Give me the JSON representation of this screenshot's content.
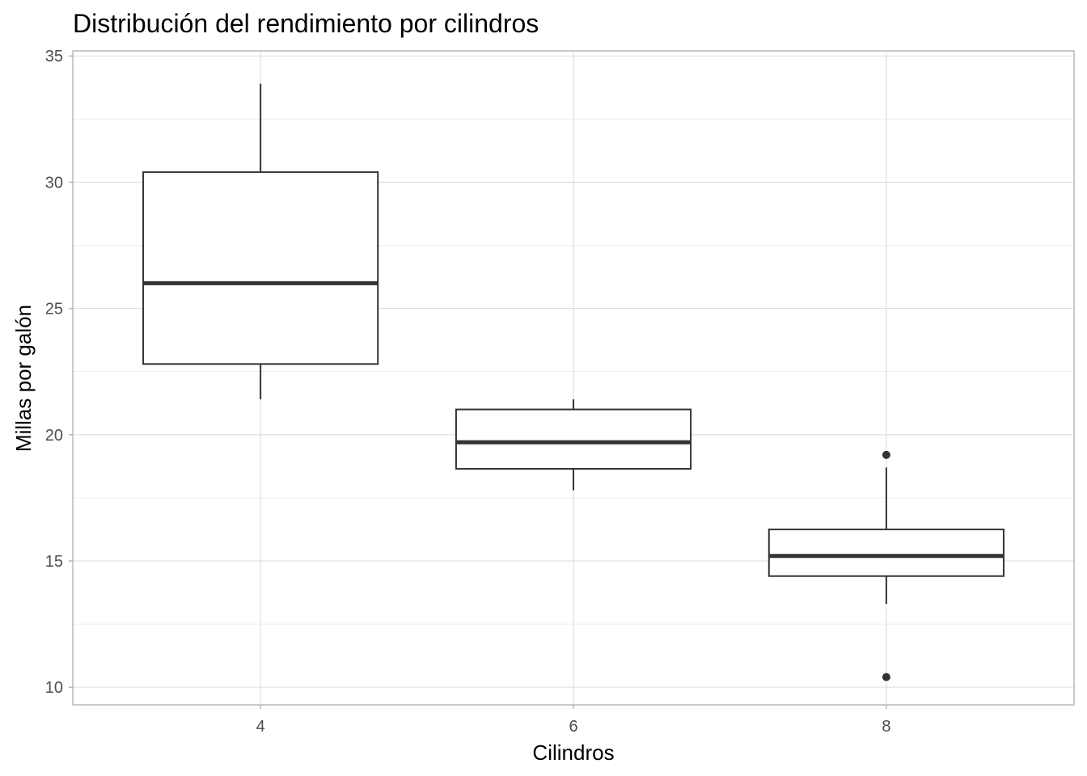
{
  "chart_data": {
    "type": "boxplot",
    "title": "Distribución del rendimiento por cilindros",
    "xlabel": "Cilindros",
    "ylabel": "Millas por galón",
    "categories": [
      "4",
      "6",
      "8"
    ],
    "ylim": [
      9.3,
      35.2
    ],
    "y_ticks": [
      10,
      15,
      20,
      25,
      30,
      35
    ],
    "grid": true,
    "series": [
      {
        "category": "4",
        "min": 21.4,
        "q1": 22.8,
        "median": 26.0,
        "q3": 30.4,
        "max": 33.9,
        "outliers": []
      },
      {
        "category": "6",
        "min": 17.8,
        "q1": 18.65,
        "median": 19.7,
        "q3": 21.0,
        "max": 21.4,
        "outliers": []
      },
      {
        "category": "8",
        "min": 13.3,
        "q1": 14.4,
        "median": 15.2,
        "q3": 16.25,
        "max": 18.7,
        "outliers": [
          10.4,
          19.2
        ]
      }
    ]
  }
}
